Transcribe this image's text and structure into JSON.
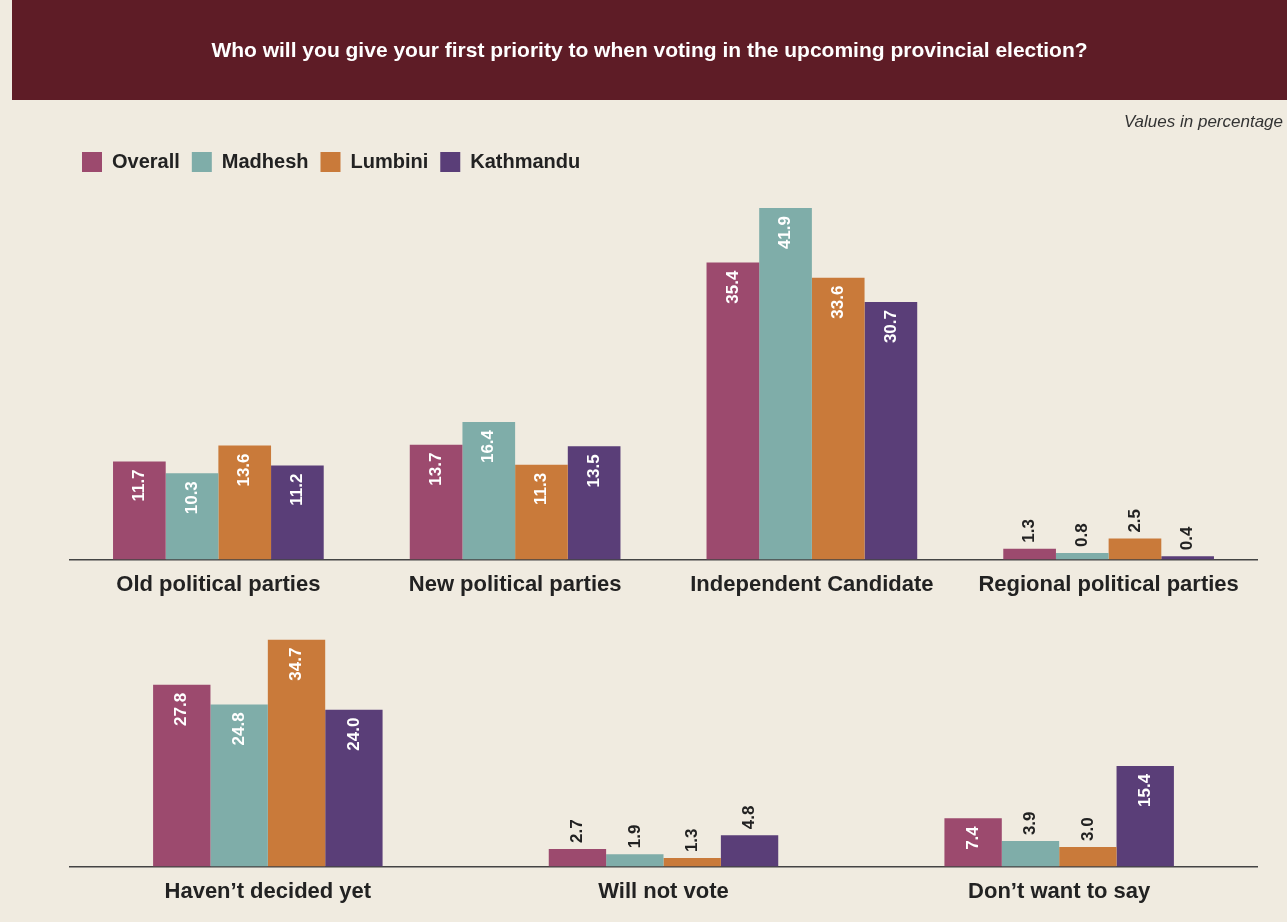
{
  "chart_data": [
    {
      "type": "bar",
      "title": "Who will you give your first priority to when voting in the upcoming provincial election?",
      "annotations": [
        "Values in percentage"
      ],
      "categories": [
        "Old political parties",
        "New political parties",
        "Independent Candidate",
        "Regional political parties"
      ],
      "legend": "top left",
      "tick_labels": "x",
      "grid": false,
      "series": [
        {
          "name": "Overall",
          "color": "#9c4a6e",
          "values": [
            11.7,
            13.7,
            35.4,
            1.3
          ],
          "value_labels": [
            "11.7",
            "13.7",
            "35.4",
            "1.3"
          ]
        },
        {
          "name": "Madhesh",
          "color": "#7fada9",
          "values": [
            10.3,
            16.4,
            41.9,
            0.8
          ],
          "value_labels": [
            "10.3",
            "16.4",
            "41.9",
            "0.8"
          ]
        },
        {
          "name": "Lumbini",
          "color": "#c97a3a",
          "values": [
            13.6,
            11.3,
            33.6,
            2.5
          ],
          "value_labels": [
            "13.6",
            "11.3",
            "33.6",
            "2.5"
          ]
        },
        {
          "name": "Kathmandu",
          "color": "#5a3e78",
          "values": [
            11.2,
            13.5,
            30.7,
            0.4
          ],
          "value_labels": [
            "11.2",
            "13.5",
            "30.7",
            "0.4"
          ]
        }
      ]
    },
    {
      "type": "bar",
      "categories": [
        "Haven’t decided yet",
        "Will not vote",
        "Don’t want to say"
      ],
      "legend": false,
      "tick_labels": "x",
      "grid": false,
      "series": [
        {
          "color": "#9c4a6e",
          "values": [
            27.8,
            2.7,
            7.4
          ],
          "value_labels": [
            "27.8",
            "2.7",
            "7.4"
          ]
        },
        {
          "color": "#7fada9",
          "values": [
            24.8,
            1.9,
            3.9
          ],
          "value_labels": [
            "24.8",
            "1.9",
            "3.9"
          ]
        },
        {
          "color": "#c97a3a",
          "values": [
            34.7,
            1.3,
            3.0
          ],
          "value_labels": [
            "34.7",
            "1.3",
            "3.0"
          ]
        },
        {
          "color": "#5a3e78",
          "values": [
            24.0,
            4.8,
            15.4
          ],
          "value_labels": [
            "24.0",
            "4.8",
            "15.4"
          ]
        }
      ]
    }
  ]
}
